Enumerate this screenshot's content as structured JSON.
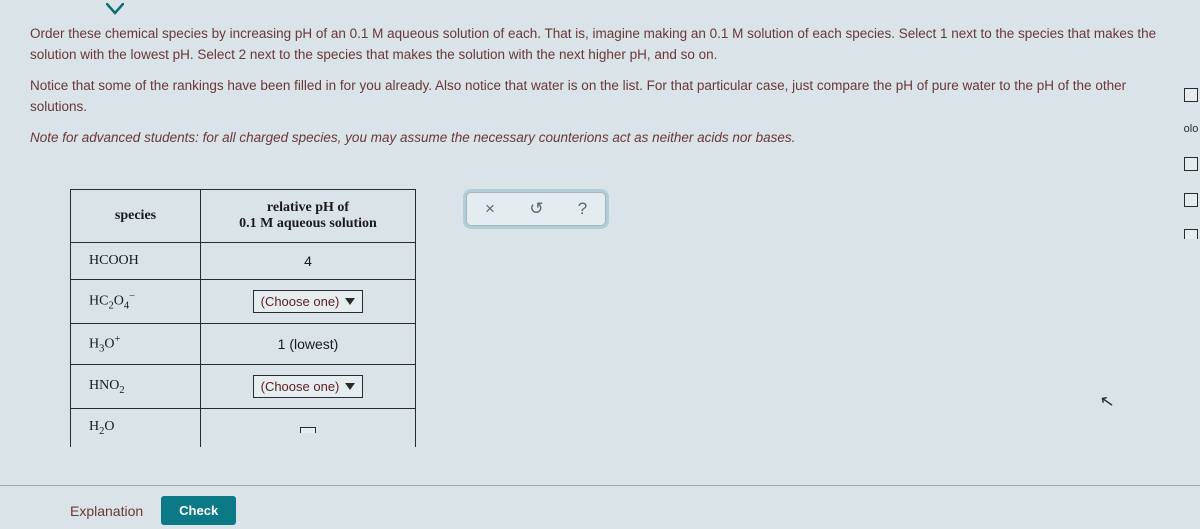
{
  "instructions": {
    "p1": "Order these chemical species by increasing pH of an 0.1 M aqueous solution of each. That is, imagine making an 0.1 M solution of each species. Select 1 next to the species that makes the solution with the lowest pH. Select 2 next to the species that makes the solution with the next higher pH, and so on.",
    "p2": "Notice that some of the rankings have been filled in for you already. Also notice that water is on the list. For that particular case, just compare the pH of pure water to the pH of the other solutions.",
    "note_lead": "Note for advanced students:",
    "note_rest": " for all charged species, you may assume the necessary counterions act as neither acids nor bases."
  },
  "table": {
    "header_species": "species",
    "header_value_line1": "relative pH of",
    "header_value_line2": "0.1 M aqueous solution",
    "rows": [
      {
        "species_html": "HCOOH",
        "value_type": "fixed",
        "value_text": "4"
      },
      {
        "species_html": "HC<sub>2</sub>O<sub>4</sub><sup>−</sup>",
        "value_type": "choose",
        "value_text": "(Choose one)"
      },
      {
        "species_html": "H<sub>3</sub>O<sup>+</sup>",
        "value_type": "fixed",
        "value_text": "1 (lowest)"
      },
      {
        "species_html": "HNO<sub>2</sub>",
        "value_type": "choose",
        "value_text": "(Choose one)"
      },
      {
        "species_html": "H<sub>2</sub>O",
        "value_type": "choose_clipped",
        "value_text": ""
      }
    ]
  },
  "toolbar": {
    "clear": "×",
    "undo": "↺",
    "help": "?"
  },
  "footer": {
    "explanation": "Explanation",
    "check": "Check"
  },
  "side": {
    "label_olo": "olo"
  },
  "colors": {
    "brown_text": "#6a3838",
    "teal": "#0b7a86",
    "bg": "#d9e3e8"
  }
}
